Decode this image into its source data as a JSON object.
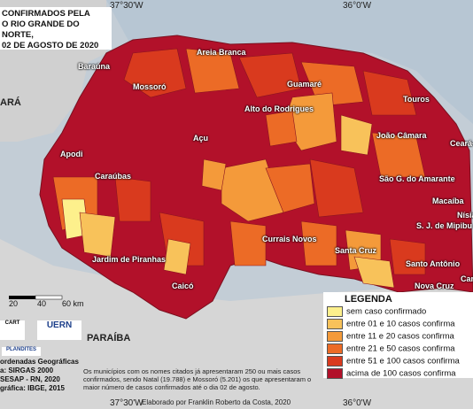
{
  "title": [
    "CONFIRMADOS PELA",
    "O RIO GRANDE DO NORTE,",
    "02 DE AGOSTO DE 2020"
  ],
  "coords": {
    "top_left": "37°30'W",
    "top_right": "36°0'W",
    "bottom_left": "37°30'W",
    "bottom_right": "36°0'W"
  },
  "regions": {
    "west": "ARÁ",
    "south": "PARAÍBA"
  },
  "cities": [
    "Baraúna",
    "Mossoró",
    "Areia Branca",
    "Guamaré",
    "Alto do Rodrigues",
    "Touros",
    "João Câmara",
    "Ceará-",
    "Açu",
    "Apodi",
    "Caraúbas",
    "São G. do Amarante",
    "Macaíba",
    "Nísia",
    "S. J. de Mipibu",
    "Currais Novos",
    "Santa Cruz",
    "Santo Antônio",
    "Nova Cruz",
    "Can",
    "Jardim de Piranhas",
    "Caicó"
  ],
  "scale": {
    "ticks": [
      "20",
      "40",
      "60 km"
    ]
  },
  "credits": [
    "ordenadas Geográficas",
    "a: SIRGAS 2000",
    "SESAP - RN, 2020",
    "gráfica: IBGE, 2015"
  ],
  "logos": [
    "UERN",
    "PLANDITES",
    "CART"
  ],
  "note": "Os municípios com os nomes citados já apresentaram 250 ou mais casos confirmados, sendo Natal (19.788) e Mossoró (5.201) os que apresentaram o maior número de casos confirmados até o dia 02 de agosto.",
  "author": "Elaborado por Franklin Roberto da Costa, 2020",
  "legend": {
    "title": "LEGENDA",
    "items": [
      {
        "label": "sem caso confirmado",
        "color": "#fdf08c"
      },
      {
        "label": "entre 01 e 10 casos confirma",
        "color": "#f8c25a"
      },
      {
        "label": "entre 11 e 20 casos confirma",
        "color": "#f49a3a"
      },
      {
        "label": "entre 21 e 50 casos confirma",
        "color": "#ec6b26"
      },
      {
        "label": "entre 51 e 100 casos confirma",
        "color": "#d93a1e"
      },
      {
        "label": "acima de 100 casos confirma",
        "color": "#b2112a"
      }
    ]
  }
}
